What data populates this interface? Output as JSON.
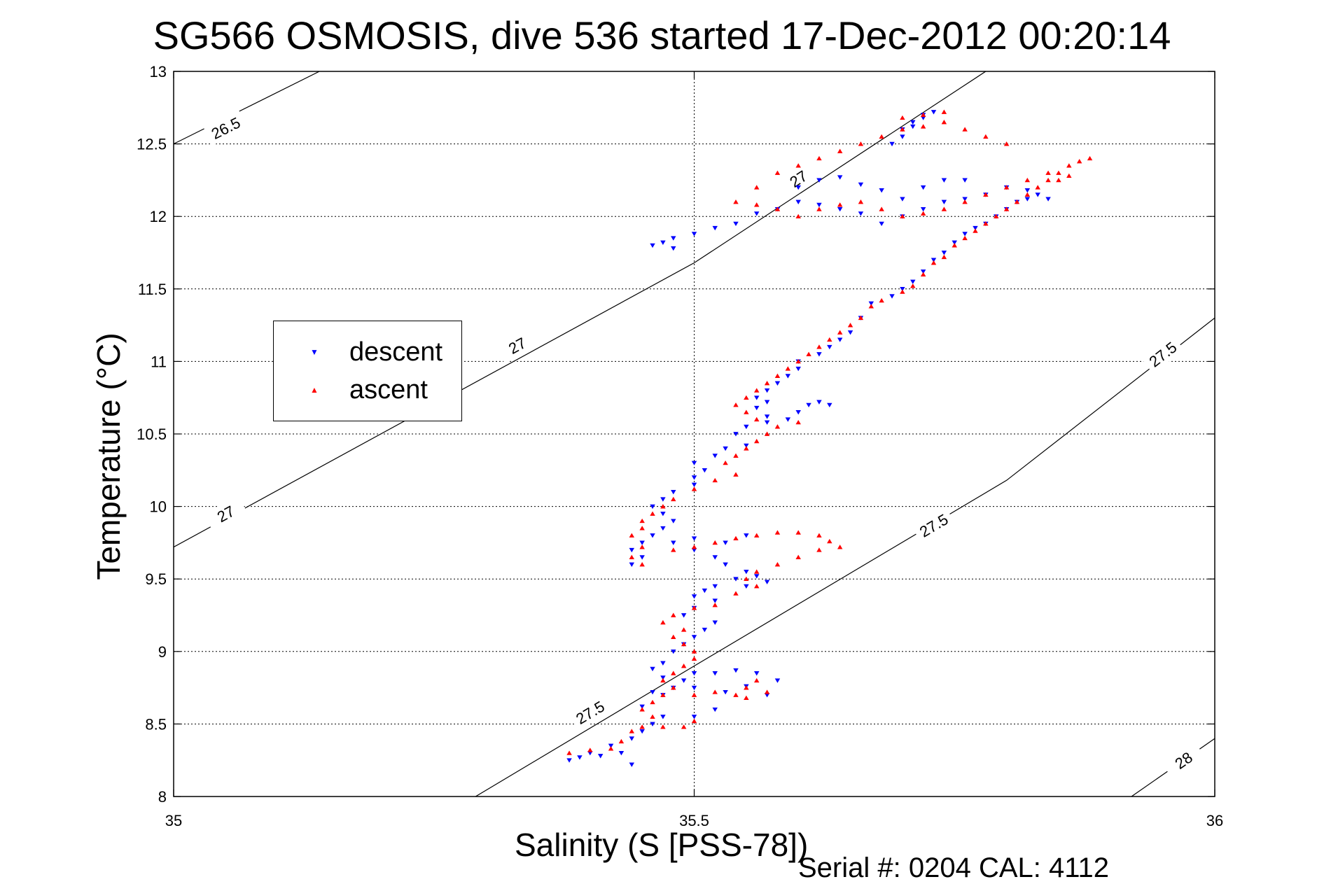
{
  "chart_data": {
    "type": "scatter",
    "title": "SG566 OSMOSIS, dive 536 started 17-Dec-2012 00:20:14",
    "xlabel": "Salinity (S [PSS-78])",
    "ylabel": "Temperature (°C)",
    "xlim": [
      35,
      36
    ],
    "ylim": [
      8,
      13
    ],
    "xticks": [
      "35",
      "35.5",
      "36"
    ],
    "yticks": [
      "8",
      "8.5",
      "9",
      "9.5",
      "10",
      "10.5",
      "11",
      "11.5",
      "12",
      "12.5",
      "13"
    ],
    "grid": true,
    "legend_position": "middle-left",
    "annotation": "Serial #: 0204  CAL: 4112",
    "contours": [
      {
        "label": "26.5",
        "points": [
          [
            35.0,
            12.5
          ],
          [
            35.14,
            13.0
          ]
        ],
        "labels_at": [
          [
            35.05,
            12.61
          ]
        ]
      },
      {
        "label": "27",
        "points": [
          [
            35.0,
            9.72
          ],
          [
            35.5,
            11.68
          ],
          [
            35.78,
            13.0
          ]
        ],
        "labels_at": [
          [
            35.33,
            11.11
          ],
          [
            35.05,
            9.95
          ],
          [
            35.6,
            12.26
          ]
        ]
      },
      {
        "label": "27.5",
        "points": [
          [
            35.29,
            8.0
          ],
          [
            35.5,
            8.9
          ],
          [
            35.8,
            10.18
          ],
          [
            36.0,
            11.3
          ]
        ],
        "labels_at": [
          [
            35.73,
            9.87
          ],
          [
            35.4,
            8.58
          ],
          [
            35.95,
            11.05
          ]
        ]
      },
      {
        "label": "28",
        "points": [
          [
            35.92,
            8.0
          ],
          [
            36.0,
            8.4
          ]
        ],
        "labels_at": [
          [
            35.97,
            8.25
          ]
        ]
      }
    ],
    "series": [
      {
        "name": "descent",
        "color": "#0000ff",
        "marker": "triangle-down",
        "points": [
          [
            35.38,
            8.25
          ],
          [
            35.39,
            8.27
          ],
          [
            35.4,
            8.3
          ],
          [
            35.41,
            8.28
          ],
          [
            35.42,
            8.35
          ],
          [
            35.44,
            8.4
          ],
          [
            35.45,
            8.45
          ],
          [
            35.46,
            8.5
          ],
          [
            35.47,
            8.55
          ],
          [
            35.45,
            8.62
          ],
          [
            35.44,
            8.22
          ],
          [
            35.43,
            8.3
          ],
          [
            35.5,
            8.55
          ],
          [
            35.52,
            8.6
          ],
          [
            35.47,
            8.7
          ],
          [
            35.48,
            8.75
          ],
          [
            35.49,
            8.8
          ],
          [
            35.5,
            8.85
          ],
          [
            35.47,
            8.82
          ],
          [
            35.46,
            8.72
          ],
          [
            35.5,
            8.75
          ],
          [
            35.52,
            8.85
          ],
          [
            35.54,
            8.87
          ],
          [
            35.56,
            8.85
          ],
          [
            35.58,
            8.8
          ],
          [
            35.55,
            8.76
          ],
          [
            35.57,
            8.7
          ],
          [
            35.53,
            8.72
          ],
          [
            35.46,
            8.88
          ],
          [
            35.47,
            8.92
          ],
          [
            35.48,
            9.0
          ],
          [
            35.49,
            9.05
          ],
          [
            35.5,
            9.1
          ],
          [
            35.51,
            9.15
          ],
          [
            35.52,
            9.2
          ],
          [
            35.49,
            9.25
          ],
          [
            35.5,
            9.3
          ],
          [
            35.52,
            9.35
          ],
          [
            35.5,
            9.38
          ],
          [
            35.51,
            9.42
          ],
          [
            35.52,
            9.45
          ],
          [
            35.54,
            9.5
          ],
          [
            35.55,
            9.55
          ],
          [
            35.56,
            9.52
          ],
          [
            35.57,
            9.48
          ],
          [
            35.55,
            9.45
          ],
          [
            35.53,
            9.6
          ],
          [
            35.52,
            9.65
          ],
          [
            35.5,
            9.7
          ],
          [
            35.48,
            9.75
          ],
          [
            35.44,
            9.6
          ],
          [
            35.45,
            9.65
          ],
          [
            35.44,
            9.7
          ],
          [
            35.45,
            9.75
          ],
          [
            35.46,
            9.8
          ],
          [
            35.47,
            9.85
          ],
          [
            35.5,
            9.78
          ],
          [
            35.53,
            9.75
          ],
          [
            35.55,
            9.8
          ],
          [
            35.48,
            9.9
          ],
          [
            35.47,
            9.95
          ],
          [
            35.46,
            10.0
          ],
          [
            35.47,
            10.05
          ],
          [
            35.48,
            10.1
          ],
          [
            35.5,
            10.15
          ],
          [
            35.5,
            10.2
          ],
          [
            35.51,
            10.25
          ],
          [
            35.5,
            10.3
          ],
          [
            35.52,
            10.35
          ],
          [
            35.53,
            10.4
          ],
          [
            35.55,
            10.42
          ],
          [
            35.54,
            10.5
          ],
          [
            35.55,
            10.55
          ],
          [
            35.57,
            10.58
          ],
          [
            35.59,
            10.6
          ],
          [
            35.6,
            10.65
          ],
          [
            35.61,
            10.7
          ],
          [
            35.62,
            10.72
          ],
          [
            35.63,
            10.7
          ],
          [
            35.57,
            10.62
          ],
          [
            35.56,
            10.68
          ],
          [
            35.57,
            10.72
          ],
          [
            35.56,
            10.75
          ],
          [
            35.57,
            10.8
          ],
          [
            35.58,
            10.85
          ],
          [
            35.59,
            10.9
          ],
          [
            35.6,
            10.95
          ],
          [
            35.6,
            11.0
          ],
          [
            35.62,
            11.05
          ],
          [
            35.63,
            11.1
          ],
          [
            35.64,
            11.15
          ],
          [
            35.65,
            11.2
          ],
          [
            35.66,
            11.3
          ],
          [
            35.67,
            11.4
          ],
          [
            35.69,
            11.45
          ],
          [
            35.7,
            11.5
          ],
          [
            35.71,
            11.55
          ],
          [
            35.72,
            11.62
          ],
          [
            35.73,
            11.7
          ],
          [
            35.74,
            11.75
          ],
          [
            35.75,
            11.82
          ],
          [
            35.76,
            11.88
          ],
          [
            35.77,
            11.92
          ],
          [
            35.78,
            11.95
          ],
          [
            35.79,
            12.0
          ],
          [
            35.8,
            12.05
          ],
          [
            35.81,
            12.1
          ],
          [
            35.82,
            12.12
          ],
          [
            35.83,
            12.15
          ],
          [
            35.84,
            12.12
          ],
          [
            35.82,
            12.18
          ],
          [
            35.8,
            12.2
          ],
          [
            35.78,
            12.15
          ],
          [
            35.76,
            12.12
          ],
          [
            35.74,
            12.1
          ],
          [
            35.72,
            12.05
          ],
          [
            35.7,
            12.0
          ],
          [
            35.68,
            11.95
          ],
          [
            35.66,
            12.02
          ],
          [
            35.64,
            12.05
          ],
          [
            35.62,
            12.08
          ],
          [
            35.6,
            12.1
          ],
          [
            35.58,
            12.05
          ],
          [
            35.56,
            12.02
          ],
          [
            35.54,
            11.95
          ],
          [
            35.52,
            11.92
          ],
          [
            35.5,
            11.88
          ],
          [
            35.48,
            11.85
          ],
          [
            35.47,
            11.82
          ],
          [
            35.46,
            11.8
          ],
          [
            35.48,
            11.78
          ],
          [
            35.6,
            12.2
          ],
          [
            35.62,
            12.25
          ],
          [
            35.64,
            12.27
          ],
          [
            35.66,
            12.22
          ],
          [
            35.68,
            12.18
          ],
          [
            35.7,
            12.12
          ],
          [
            35.72,
            12.2
          ],
          [
            35.74,
            12.25
          ],
          [
            35.76,
            12.25
          ],
          [
            35.7,
            12.6
          ],
          [
            35.71,
            12.65
          ],
          [
            35.72,
            12.7
          ],
          [
            35.73,
            12.72
          ],
          [
            35.72,
            12.68
          ],
          [
            35.71,
            12.62
          ],
          [
            35.7,
            12.55
          ],
          [
            35.69,
            12.5
          ]
        ]
      },
      {
        "name": "ascent",
        "color": "#ff0000",
        "marker": "triangle-up",
        "points": [
          [
            35.38,
            8.3
          ],
          [
            35.4,
            8.32
          ],
          [
            35.42,
            8.33
          ],
          [
            35.43,
            8.38
          ],
          [
            35.44,
            8.45
          ],
          [
            35.45,
            8.48
          ],
          [
            35.47,
            8.48
          ],
          [
            35.49,
            8.48
          ],
          [
            35.5,
            8.52
          ],
          [
            35.46,
            8.55
          ],
          [
            35.45,
            8.6
          ],
          [
            35.46,
            8.65
          ],
          [
            35.47,
            8.7
          ],
          [
            35.48,
            8.75
          ],
          [
            35.47,
            8.8
          ],
          [
            35.48,
            8.85
          ],
          [
            35.49,
            8.9
          ],
          [
            35.5,
            8.95
          ],
          [
            35.5,
            9.0
          ],
          [
            35.49,
            9.05
          ],
          [
            35.5,
            8.7
          ],
          [
            35.52,
            8.72
          ],
          [
            35.54,
            8.7
          ],
          [
            35.55,
            8.75
          ],
          [
            35.56,
            8.8
          ],
          [
            35.57,
            8.72
          ],
          [
            35.55,
            8.68
          ],
          [
            35.48,
            9.1
          ],
          [
            35.49,
            9.15
          ],
          [
            35.47,
            9.2
          ],
          [
            35.48,
            9.25
          ],
          [
            35.5,
            9.3
          ],
          [
            35.52,
            9.32
          ],
          [
            35.54,
            9.4
          ],
          [
            35.56,
            9.45
          ],
          [
            35.55,
            9.5
          ],
          [
            35.56,
            9.55
          ],
          [
            35.58,
            9.6
          ],
          [
            35.6,
            9.65
          ],
          [
            35.62,
            9.7
          ],
          [
            35.64,
            9.72
          ],
          [
            35.63,
            9.76
          ],
          [
            35.62,
            9.8
          ],
          [
            35.6,
            9.82
          ],
          [
            35.58,
            9.82
          ],
          [
            35.56,
            9.8
          ],
          [
            35.54,
            9.78
          ],
          [
            35.52,
            9.75
          ],
          [
            35.5,
            9.72
          ],
          [
            35.48,
            9.7
          ],
          [
            35.45,
            9.6
          ],
          [
            35.44,
            9.65
          ],
          [
            35.45,
            9.72
          ],
          [
            35.44,
            9.8
          ],
          [
            35.45,
            9.85
          ],
          [
            35.45,
            9.9
          ],
          [
            35.46,
            9.95
          ],
          [
            35.47,
            10.0
          ],
          [
            35.48,
            10.05
          ],
          [
            35.5,
            10.12
          ],
          [
            35.52,
            10.18
          ],
          [
            35.54,
            10.22
          ],
          [
            35.53,
            10.3
          ],
          [
            35.54,
            10.35
          ],
          [
            35.55,
            10.4
          ],
          [
            35.56,
            10.45
          ],
          [
            35.57,
            10.5
          ],
          [
            35.58,
            10.55
          ],
          [
            35.6,
            10.58
          ],
          [
            35.56,
            10.6
          ],
          [
            35.55,
            10.65
          ],
          [
            35.54,
            10.7
          ],
          [
            35.55,
            10.75
          ],
          [
            35.56,
            10.8
          ],
          [
            35.57,
            10.85
          ],
          [
            35.58,
            10.9
          ],
          [
            35.59,
            10.95
          ],
          [
            35.6,
            11.0
          ],
          [
            35.61,
            11.05
          ],
          [
            35.62,
            11.1
          ],
          [
            35.63,
            11.15
          ],
          [
            35.64,
            11.2
          ],
          [
            35.65,
            11.25
          ],
          [
            35.66,
            11.3
          ],
          [
            35.67,
            11.38
          ],
          [
            35.68,
            11.42
          ],
          [
            35.7,
            11.48
          ],
          [
            35.71,
            11.52
          ],
          [
            35.72,
            11.6
          ],
          [
            35.73,
            11.68
          ],
          [
            35.74,
            11.72
          ],
          [
            35.75,
            11.8
          ],
          [
            35.76,
            11.85
          ],
          [
            35.77,
            11.9
          ],
          [
            35.78,
            11.95
          ],
          [
            35.79,
            12.0
          ],
          [
            35.8,
            12.05
          ],
          [
            35.81,
            12.1
          ],
          [
            35.82,
            12.15
          ],
          [
            35.83,
            12.2
          ],
          [
            35.84,
            12.25
          ],
          [
            35.85,
            12.3
          ],
          [
            35.86,
            12.35
          ],
          [
            35.87,
            12.38
          ],
          [
            35.88,
            12.4
          ],
          [
            35.86,
            12.28
          ],
          [
            35.85,
            12.25
          ],
          [
            35.84,
            12.3
          ],
          [
            35.82,
            12.25
          ],
          [
            35.8,
            12.2
          ],
          [
            35.78,
            12.15
          ],
          [
            35.76,
            12.1
          ],
          [
            35.74,
            12.05
          ],
          [
            35.72,
            12.02
          ],
          [
            35.7,
            12.0
          ],
          [
            35.68,
            12.05
          ],
          [
            35.66,
            12.1
          ],
          [
            35.64,
            12.08
          ],
          [
            35.62,
            12.05
          ],
          [
            35.6,
            12.0
          ],
          [
            35.58,
            12.05
          ],
          [
            35.56,
            12.08
          ],
          [
            35.54,
            12.1
          ],
          [
            35.56,
            12.2
          ],
          [
            35.58,
            12.3
          ],
          [
            35.6,
            12.35
          ],
          [
            35.62,
            12.4
          ],
          [
            35.64,
            12.45
          ],
          [
            35.66,
            12.5
          ],
          [
            35.68,
            12.55
          ],
          [
            35.7,
            12.6
          ],
          [
            35.72,
            12.62
          ],
          [
            35.74,
            12.65
          ],
          [
            35.76,
            12.6
          ],
          [
            35.78,
            12.55
          ],
          [
            35.8,
            12.5
          ],
          [
            35.7,
            12.68
          ],
          [
            35.72,
            12.7
          ],
          [
            35.74,
            12.72
          ]
        ]
      }
    ]
  }
}
